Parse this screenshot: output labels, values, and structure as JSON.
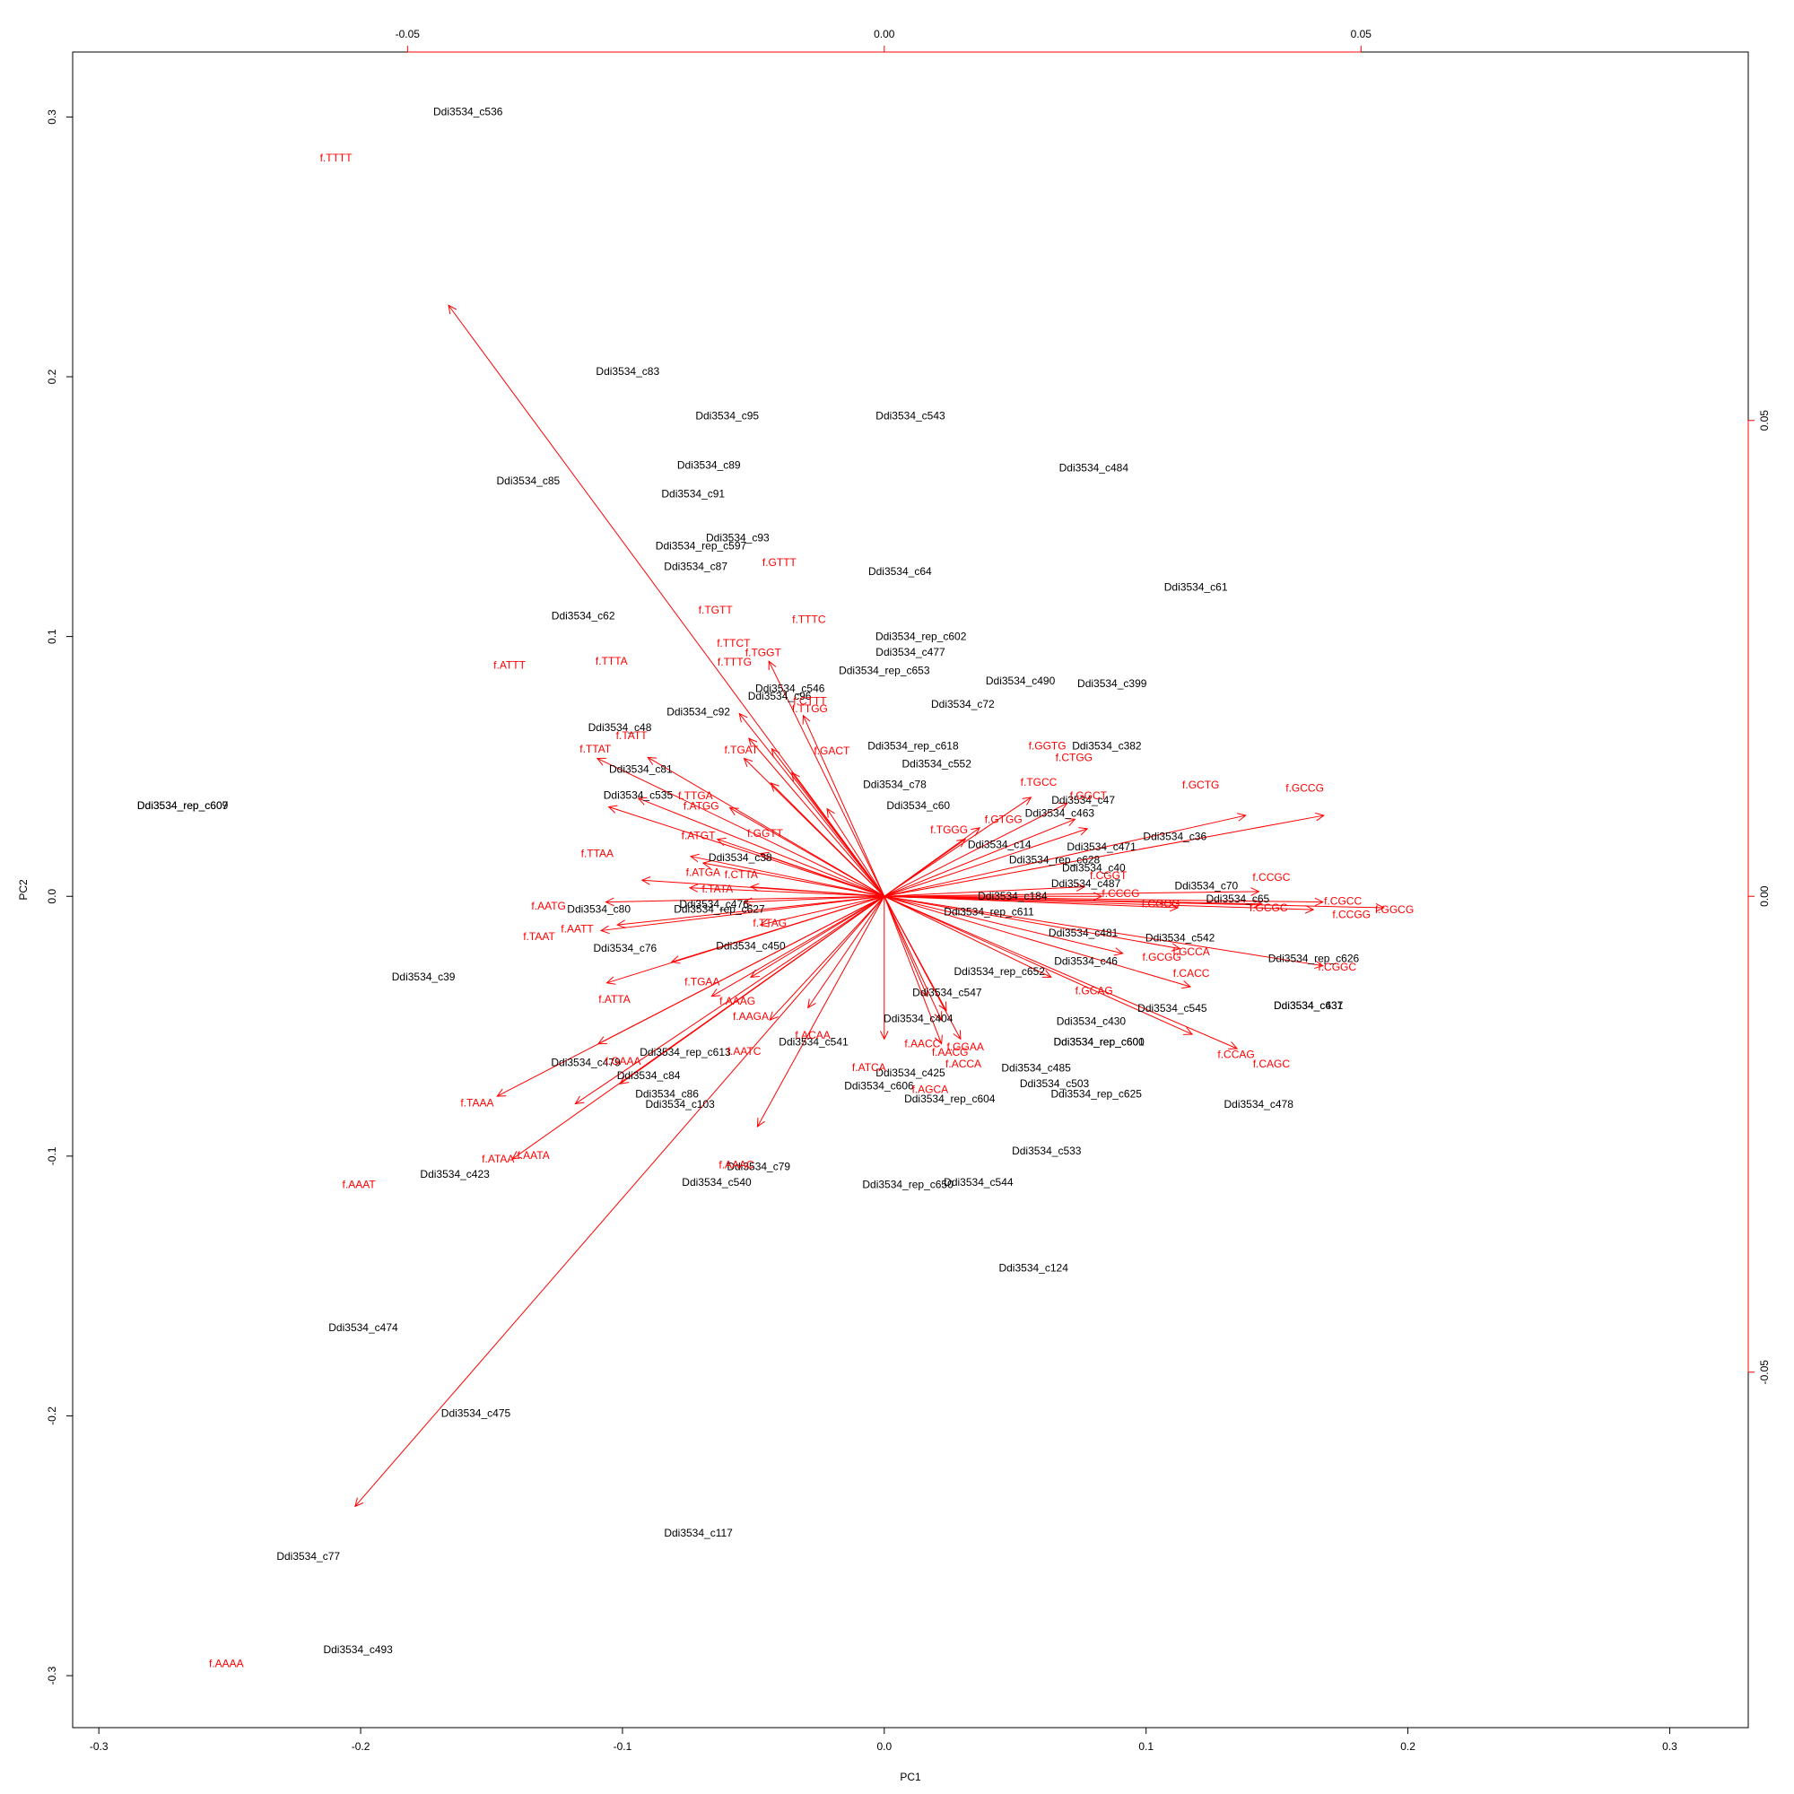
{
  "chart_data": {
    "type": "scatter",
    "subtype": "biplot",
    "title": "",
    "xlabel": "PC1",
    "ylabel": "PC2",
    "xlim": [
      -0.31,
      0.33
    ],
    "ylim": [
      -0.32,
      0.325
    ],
    "xticks": [
      "-0.3",
      "-0.2",
      "-0.1",
      "0.0",
      "0.1",
      "0.2",
      "0.3"
    ],
    "yticks": [
      "-0.3",
      "-0.2",
      "-0.1",
      "0.0",
      "0.1",
      "0.2",
      "0.3"
    ],
    "xticks_values": [
      -0.3,
      -0.2,
      -0.1,
      0.0,
      0.1,
      0.2,
      0.3
    ],
    "yticks_values": [
      -0.3,
      -0.2,
      -0.1,
      0.0,
      0.1,
      0.2,
      0.3
    ],
    "loading_axes": {
      "color": "#ff0000",
      "top_ticks": [
        "-0.05",
        "0.00",
        "0.05"
      ],
      "top_ticks_values": [
        -0.05,
        0.0,
        0.05
      ],
      "right_ticks": [
        "-0.05",
        "0.00",
        "0.05"
      ],
      "right_ticks_values": [
        -0.05,
        0.0,
        0.05
      ]
    },
    "observation_color": "#000000",
    "variable_color": "#ff0000",
    "observations": [
      {
        "label": "Ddi3534_c536",
        "x": -0.159,
        "y": 0.302
      },
      {
        "label": "Ddi3534_c83",
        "x": -0.098,
        "y": 0.202
      },
      {
        "label": "Ddi3534_c95",
        "x": -0.06,
        "y": 0.185
      },
      {
        "label": "Ddi3534_c543",
        "x": 0.01,
        "y": 0.185
      },
      {
        "label": "Ddi3534_c89",
        "x": -0.067,
        "y": 0.166
      },
      {
        "label": "Ddi3534_c484",
        "x": 0.08,
        "y": 0.165
      },
      {
        "label": "Ddi3534_c85",
        "x": -0.136,
        "y": 0.16
      },
      {
        "label": "Ddi3534_c91",
        "x": -0.073,
        "y": 0.155
      },
      {
        "label": "Ddi3534_c93",
        "x": -0.056,
        "y": 0.138
      },
      {
        "label": "Ddi3534_rep_c597",
        "x": -0.07,
        "y": 0.135
      },
      {
        "label": "Ddi3534_c87",
        "x": -0.072,
        "y": 0.127
      },
      {
        "label": "Ddi3534_c64",
        "x": 0.006,
        "y": 0.125
      },
      {
        "label": "Ddi3534_c61",
        "x": 0.119,
        "y": 0.119
      },
      {
        "label": "Ddi3534_c62",
        "x": -0.115,
        "y": 0.108
      },
      {
        "label": "Ddi3534_rep_c602",
        "x": 0.014,
        "y": 0.1
      },
      {
        "label": "Ddi3534_c477",
        "x": 0.01,
        "y": 0.094
      },
      {
        "label": "Ddi3534_rep_c653",
        "x": 0.0,
        "y": 0.087
      },
      {
        "label": "Ddi3534_c490",
        "x": 0.052,
        "y": 0.083
      },
      {
        "label": "Ddi3534_c399",
        "x": 0.087,
        "y": 0.082
      },
      {
        "label": "Ddi3534_c546",
        "x": -0.036,
        "y": 0.08
      },
      {
        "label": "Ddi3534_c96",
        "x": -0.04,
        "y": 0.077
      },
      {
        "label": "Ddi3534_c72",
        "x": 0.03,
        "y": 0.074
      },
      {
        "label": "Ddi3534_c92",
        "x": -0.071,
        "y": 0.071
      },
      {
        "label": "Ddi3534_c48",
        "x": -0.101,
        "y": 0.065
      },
      {
        "label": "Ddi3534_rep_c618",
        "x": 0.011,
        "y": 0.058
      },
      {
        "label": "Ddi3534_c382",
        "x": 0.085,
        "y": 0.058
      },
      {
        "label": "Ddi3534_c81",
        "x": -0.093,
        "y": 0.049
      },
      {
        "label": "Ddi3534_c552",
        "x": 0.02,
        "y": 0.051
      },
      {
        "label": "Ddi3534_c78",
        "x": 0.004,
        "y": 0.043
      },
      {
        "label": "Ddi3534_rep_c607",
        "x": -0.268,
        "y": 0.035
      },
      {
        "label": "Ddi3534_rep_c609",
        "x": -0.268,
        "y": 0.035
      },
      {
        "label": "Ddi3534_c535",
        "x": -0.094,
        "y": 0.039
      },
      {
        "label": "Ddi3534_c47",
        "x": 0.076,
        "y": 0.037
      },
      {
        "label": "Ddi3534_c463",
        "x": 0.067,
        "y": 0.032
      },
      {
        "label": "Ddi3534_c60",
        "x": 0.013,
        "y": 0.035
      },
      {
        "label": "Ddi3534_c36",
        "x": 0.111,
        "y": 0.023
      },
      {
        "label": "Ddi3534_c471",
        "x": 0.083,
        "y": 0.019
      },
      {
        "label": "Ddi3534_c14",
        "x": 0.044,
        "y": 0.02
      },
      {
        "label": "Ddi3534_c38",
        "x": -0.055,
        "y": 0.015
      },
      {
        "label": "Ddi3534_rep_c628",
        "x": 0.065,
        "y": 0.014
      },
      {
        "label": "Ddi3534_c40",
        "x": 0.08,
        "y": 0.011
      },
      {
        "label": "Ddi3534_c487",
        "x": 0.077,
        "y": 0.005
      },
      {
        "label": "Ddi3534_c70",
        "x": 0.123,
        "y": 0.004
      },
      {
        "label": "Ddi3534_c65",
        "x": 0.135,
        "y": -0.001
      },
      {
        "label": "Ddi3534_c184",
        "x": 0.049,
        "y": 0.0
      },
      {
        "label": "Ddi3534_c80",
        "x": -0.109,
        "y": -0.005
      },
      {
        "label": "Ddi3534_c476",
        "x": -0.065,
        "y": -0.003
      },
      {
        "label": "Ddi3534_rep_c627",
        "x": -0.063,
        "y": -0.005
      },
      {
        "label": "Ddi3534_rep_c611",
        "x": 0.04,
        "y": -0.006
      },
      {
        "label": "Ddi3534_c481",
        "x": 0.076,
        "y": -0.014
      },
      {
        "label": "Ddi3534_c542",
        "x": 0.113,
        "y": -0.016
      },
      {
        "label": "Ddi3534_c76",
        "x": -0.099,
        "y": -0.02
      },
      {
        "label": "Ddi3534_c450",
        "x": -0.051,
        "y": -0.019
      },
      {
        "label": "Ddi3534_rep_c626",
        "x": 0.164,
        "y": -0.024
      },
      {
        "label": "Ddi3534_c46",
        "x": 0.077,
        "y": -0.025
      },
      {
        "label": "Ddi3534_rep_c652",
        "x": 0.044,
        "y": -0.029
      },
      {
        "label": "Ddi3534_c39",
        "x": -0.176,
        "y": -0.031
      },
      {
        "label": "Ddi3534_c547",
        "x": 0.024,
        "y": -0.037
      },
      {
        "label": "Ddi3534_c637",
        "x": 0.162,
        "y": -0.042
      },
      {
        "label": "Ddi3534_c431",
        "x": 0.162,
        "y": -0.042
      },
      {
        "label": "Ddi3534_c545",
        "x": 0.11,
        "y": -0.043
      },
      {
        "label": "Ddi3534_c404",
        "x": 0.013,
        "y": -0.047
      },
      {
        "label": "Ddi3534_c430",
        "x": 0.079,
        "y": -0.048
      },
      {
        "label": "Ddi3534_c541",
        "x": -0.027,
        "y": -0.056
      },
      {
        "label": "Ddi3534_rep_c600",
        "x": 0.082,
        "y": -0.056
      },
      {
        "label": "Ddi3534_rep_c601",
        "x": 0.082,
        "y": -0.056
      },
      {
        "label": "Ddi3534_rep_c613",
        "x": -0.076,
        "y": -0.06
      },
      {
        "label": "Ddi3534_c479",
        "x": -0.114,
        "y": -0.064
      },
      {
        "label": "Ddi3534_c485",
        "x": 0.058,
        "y": -0.066
      },
      {
        "label": "Ddi3534_c425",
        "x": 0.01,
        "y": -0.068
      },
      {
        "label": "Ddi3534_c84",
        "x": -0.09,
        "y": -0.069
      },
      {
        "label": "Ddi3534_c503",
        "x": 0.065,
        "y": -0.072
      },
      {
        "label": "Ddi3534_c606",
        "x": -0.002,
        "y": -0.073
      },
      {
        "label": "Ddi3534_rep_c604",
        "x": 0.025,
        "y": -0.078
      },
      {
        "label": "Ddi3534_rep_c625",
        "x": 0.081,
        "y": -0.076
      },
      {
        "label": "Ddi3534_c86",
        "x": -0.083,
        "y": -0.076
      },
      {
        "label": "Ddi3534_c103",
        "x": -0.078,
        "y": -0.08
      },
      {
        "label": "Ddi3534_c478",
        "x": 0.143,
        "y": -0.08
      },
      {
        "label": "Ddi3534_c533",
        "x": 0.062,
        "y": -0.098
      },
      {
        "label": "Ddi3534_c79",
        "x": -0.048,
        "y": -0.104
      },
      {
        "label": "Ddi3534_c423",
        "x": -0.164,
        "y": -0.107
      },
      {
        "label": "Ddi3534_c540",
        "x": -0.064,
        "y": -0.11
      },
      {
        "label": "Ddi3534_c544",
        "x": 0.036,
        "y": -0.11
      },
      {
        "label": "Ddi3534_rep_c650",
        "x": 0.009,
        "y": -0.111
      },
      {
        "label": "Ddi3534_c124",
        "x": 0.057,
        "y": -0.143
      },
      {
        "label": "Ddi3534_c474",
        "x": -0.199,
        "y": -0.166
      },
      {
        "label": "Ddi3534_c475",
        "x": -0.156,
        "y": -0.199
      },
      {
        "label": "Ddi3534_c117",
        "x": -0.071,
        "y": -0.245
      },
      {
        "label": "Ddi3534_c77",
        "x": -0.22,
        "y": -0.254
      },
      {
        "label": "Ddi3534_c493",
        "x": -0.201,
        "y": -0.29
      }
    ],
    "loadings": [
      {
        "label": "f.TTTT",
        "x": -0.0457,
        "y": 0.0621,
        "lx": -0.0575,
        "ly": 0.0776
      },
      {
        "label": "f.AAAA",
        "x": -0.0555,
        "y": -0.0641,
        "lx": -0.069,
        "ly": -0.0806
      },
      {
        "label": "f.GTTT",
        "x": -0.0121,
        "y": 0.0247,
        "lx": -0.011,
        "ly": 0.0351
      },
      {
        "label": "f.TGTT",
        "x": -0.0152,
        "y": 0.0192,
        "lx": -0.0177,
        "ly": 0.0301
      },
      {
        "label": "f.TTTC",
        "x": -0.0085,
        "y": 0.019,
        "lx": -0.0079,
        "ly": 0.0291
      },
      {
        "label": "f.TTCT",
        "x": -0.0142,
        "y": 0.0166,
        "lx": -0.0158,
        "ly": 0.0266
      },
      {
        "label": "f.TGGT",
        "x": -0.0118,
        "y": 0.0155,
        "lx": -0.0127,
        "ly": 0.0256
      },
      {
        "label": "f.ATTT",
        "x": -0.0301,
        "y": 0.0145,
        "lx": -0.0393,
        "ly": 0.0243
      },
      {
        "label": "f.TTTA",
        "x": -0.0248,
        "y": 0.0146,
        "lx": -0.0286,
        "ly": 0.0247
      },
      {
        "label": "f.TTTG",
        "x": -0.0147,
        "y": 0.0145,
        "lx": -0.0157,
        "ly": 0.0246
      },
      {
        "label": "f.TATT",
        "x": -0.0258,
        "y": 0.0103,
        "lx": -0.0265,
        "ly": 0.0169
      },
      {
        "label": "f.TTAT",
        "x": -0.0289,
        "y": 0.0094,
        "lx": -0.0303,
        "ly": 0.0155
      },
      {
        "label": "f.CTTT",
        "x": -0.0097,
        "y": 0.013,
        "lx": -0.0078,
        "ly": 0.0205
      },
      {
        "label": "f.TTGG",
        "x": -0.0119,
        "y": 0.0119,
        "lx": -0.0078,
        "ly": 0.0197
      },
      {
        "label": "f.TGAT",
        "x": -0.0162,
        "y": 0.0093,
        "lx": -0.015,
        "ly": 0.0154
      },
      {
        "label": "f.GACT",
        "x": -0.006,
        "y": 0.0092,
        "lx": -0.0055,
        "ly": 0.0153
      },
      {
        "label": "f.GGTG",
        "x": 0.0154,
        "y": 0.0104,
        "lx": 0.0171,
        "ly": 0.0158
      },
      {
        "label": "f.CTGG",
        "x": 0.0192,
        "y": 0.0098,
        "lx": 0.0199,
        "ly": 0.0146
      },
      {
        "label": "f.GCTG",
        "x": 0.0379,
        "y": 0.0085,
        "lx": 0.0332,
        "ly": 0.0117
      },
      {
        "label": "f.GCCG",
        "x": 0.0461,
        "y": 0.0085,
        "lx": 0.0441,
        "ly": 0.0114
      },
      {
        "label": "f.TGCC",
        "x": 0.02,
        "y": 0.0081,
        "lx": 0.0162,
        "ly": 0.012
      },
      {
        "label": "f.GGCT",
        "x": 0.0213,
        "y": 0.0071,
        "lx": 0.0214,
        "ly": 0.0106
      },
      {
        "label": "f.ATGT",
        "x": -0.0203,
        "y": 0.0042,
        "lx": -0.0195,
        "ly": 0.0064
      },
      {
        "label": "f.TTAA",
        "x": -0.0254,
        "y": 0.0017,
        "lx": -0.0301,
        "ly": 0.0045
      },
      {
        "label": "f.ATGA",
        "x": -0.0204,
        "y": 0.0009,
        "lx": -0.019,
        "ly": 0.0025
      },
      {
        "label": "f.TATA",
        "x": -0.0147,
        "y": -0.0006,
        "lx": -0.0175,
        "ly": 0.0008
      },
      {
        "label": "f.AATG",
        "x": -0.0292,
        "y": -0.0006,
        "lx": -0.0352,
        "ly": -0.001
      },
      {
        "label": "f.TAAT",
        "x": -0.0297,
        "y": -0.0036,
        "lx": -0.0362,
        "ly": -0.0042
      },
      {
        "label": "f.AATT",
        "x": -0.028,
        "y": -0.003,
        "lx": -0.0322,
        "ly": -0.0034
      },
      {
        "label": "f.TGAA",
        "x": -0.0223,
        "y": -0.0069,
        "lx": -0.0191,
        "ly": -0.009
      },
      {
        "label": "f.ATTA",
        "x": -0.0291,
        "y": -0.0091,
        "lx": -0.0283,
        "ly": -0.0108
      },
      {
        "label": "f.AAAG",
        "x": -0.0181,
        "y": -0.0105,
        "lx": -0.0154,
        "ly": -0.011
      },
      {
        "label": "f.GAAA",
        "x": -0.03,
        "y": -0.0155,
        "lx": -0.0274,
        "ly": -0.0173
      },
      {
        "label": "f.TAAA",
        "x": -0.0406,
        "y": -0.021,
        "lx": -0.0427,
        "ly": -0.0217
      },
      {
        "label": "f.ATAA",
        "x": -0.0324,
        "y": -0.0218,
        "lx": -0.0405,
        "ly": -0.0276
      },
      {
        "label": "f.AATA",
        "x": -0.0277,
        "y": -0.0197,
        "lx": -0.0368,
        "ly": -0.0272
      },
      {
        "label": "f.AAAT",
        "x": -0.039,
        "y": -0.0276,
        "lx": -0.0551,
        "ly": -0.0303
      },
      {
        "label": "f.AAAC",
        "x": -0.0133,
        "y": -0.0242,
        "lx": -0.0155,
        "ly": -0.0282
      },
      {
        "label": "f.ACAA",
        "x": -0.008,
        "y": -0.0117,
        "lx": -0.0075,
        "ly": -0.0146
      },
      {
        "label": "f.ATCA",
        "x": 0.0,
        "y": -0.015,
        "lx": -0.0016,
        "ly": -0.018
      },
      {
        "label": "f.AACC",
        "x": 0.0045,
        "y": -0.0105,
        "lx": 0.004,
        "ly": -0.0155
      },
      {
        "label": "f.GGAA",
        "x": 0.0065,
        "y": -0.012,
        "lx": 0.0085,
        "ly": -0.0158
      },
      {
        "label": "f.AACG",
        "x": 0.006,
        "y": -0.013,
        "lx": 0.0069,
        "ly": -0.0164
      },
      {
        "label": "f.ACCA",
        "x": 0.008,
        "y": -0.015,
        "lx": 0.0083,
        "ly": -0.0176
      },
      {
        "label": "f.AGCA",
        "x": 0.006,
        "y": -0.0155,
        "lx": 0.0048,
        "ly": -0.0203
      },
      {
        "label": "f.GCAG",
        "x": 0.0175,
        "y": -0.0085,
        "lx": 0.022,
        "ly": -0.0099
      },
      {
        "label": "f.CACC",
        "x": 0.0321,
        "y": -0.0095,
        "lx": 0.0322,
        "ly": -0.0081
      },
      {
        "label": "f.CGGC",
        "x": 0.046,
        "y": -0.0073,
        "lx": 0.0475,
        "ly": -0.0074
      },
      {
        "label": "f.CCAG",
        "x": 0.0323,
        "y": -0.0145,
        "lx": 0.0369,
        "ly": -0.0166
      },
      {
        "label": "f.CAGC",
        "x": 0.037,
        "y": -0.016,
        "lx": 0.0406,
        "ly": -0.0176
      },
      {
        "label": "f.CCGC",
        "x": 0.0393,
        "y": 0.0005,
        "lx": 0.0406,
        "ly": 0.002
      },
      {
        "label": "f.GCGC",
        "x": 0.0396,
        "y": -0.0008,
        "lx": 0.0403,
        "ly": -0.0012
      },
      {
        "label": "f.CGCC",
        "x": 0.046,
        "y": -0.0006,
        "lx": 0.0481,
        "ly": -0.0005
      },
      {
        "label": "f.CCGG",
        "x": 0.045,
        "y": -0.0014,
        "lx": 0.049,
        "ly": -0.0019
      },
      {
        "label": "f.GGCG",
        "x": 0.0524,
        "y": -0.0012,
        "lx": 0.0535,
        "ly": -0.0014
      },
      {
        "label": "f.CCCG",
        "x": 0.0228,
        "y": 0.0,
        "lx": 0.0248,
        "ly": 0.0003
      },
      {
        "label": "f.CGCG",
        "x": 0.0308,
        "y": -0.0012,
        "lx": 0.029,
        "ly": -0.0008
      },
      {
        "label": "f.GCGG",
        "x": 0.025,
        "y": -0.006,
        "lx": 0.0291,
        "ly": -0.0064
      },
      {
        "label": "f.GCCA",
        "x": 0.031,
        "y": -0.0055,
        "lx": 0.0322,
        "ly": -0.0058
      },
      {
        "label": "f.CGGT",
        "x": 0.021,
        "y": 0.001,
        "lx": 0.0235,
        "ly": 0.0022
      },
      {
        "label": "f.GTGG",
        "x": 0.01,
        "y": 0.0072,
        "lx": 0.0125,
        "ly": 0.0081
      },
      {
        "label": "f.TGGG",
        "x": 0.0085,
        "y": 0.006,
        "lx": 0.0068,
        "ly": 0.007
      },
      {
        "label": "f.TTAG",
        "x": -0.013,
        "y": -0.003,
        "lx": -0.012,
        "ly": -0.0028
      },
      {
        "label": "f.TTGA",
        "x": -0.019,
        "y": 0.0035,
        "lx": -0.0198,
        "ly": 0.0106
      },
      {
        "label": "f.ATGG",
        "x": -0.0175,
        "y": 0.006,
        "lx": -0.0192,
        "ly": 0.0095
      },
      {
        "label": "f.GGTT",
        "x": -0.013,
        "y": 0.0045,
        "lx": -0.0125,
        "ly": 0.0066
      },
      {
        "label": "f.CTTA",
        "x": -0.014,
        "y": 0.001,
        "lx": -0.015,
        "ly": 0.0023
      },
      {
        "label": "f.AAGA",
        "x": -0.014,
        "y": -0.0085,
        "lx": -0.014,
        "ly": -0.0126
      },
      {
        "label": "f.AATC",
        "x": -0.012,
        "y": -0.013,
        "lx": -0.0147,
        "ly": -0.0163
      }
    ]
  }
}
